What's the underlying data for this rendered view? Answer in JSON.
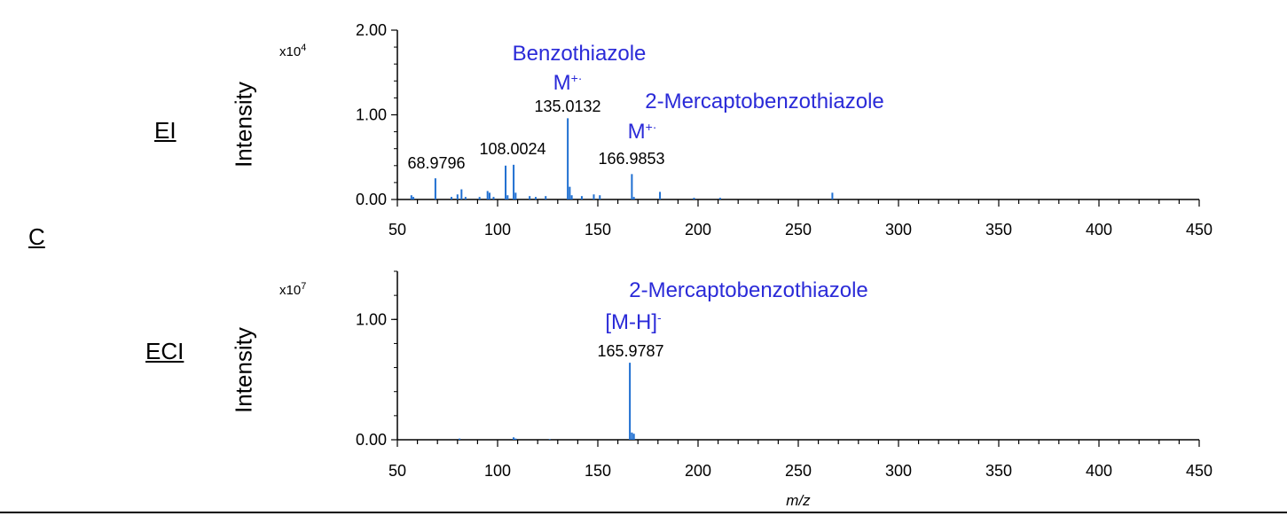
{
  "panel_label": "C",
  "panels": [
    {
      "mode": "EI",
      "ylabel": "Intensity",
      "multiplier_base": "x10",
      "multiplier_exp": "4"
    },
    {
      "mode": "ECI",
      "ylabel": "Intensity",
      "multiplier_base": "x10",
      "multiplier_exp": "7"
    }
  ],
  "xlabel": "m/z",
  "colors": {
    "peak": "#1f6fd1",
    "annotation": "#2a2ad8",
    "axis": "#000000"
  },
  "chart_data": [
    {
      "type": "bar",
      "title": "EI",
      "xlabel": "",
      "ylabel": "Intensity",
      "y_multiplier": "x10^4",
      "xlim": [
        50,
        450
      ],
      "ylim": [
        0,
        2.0
      ],
      "x_ticks": [
        50,
        100,
        150,
        200,
        250,
        300,
        350,
        400,
        450
      ],
      "y_ticks": [
        0.0,
        1.0,
        2.0
      ],
      "y_tick_labels": [
        "0.00",
        "1.00",
        "2.00"
      ],
      "peaks": [
        {
          "mz": 57.0,
          "intensity": 0.05
        },
        {
          "mz": 58.0,
          "intensity": 0.03
        },
        {
          "mz": 68.9796,
          "intensity": 0.25,
          "label": "68.9796"
        },
        {
          "mz": 77.0,
          "intensity": 0.03
        },
        {
          "mz": 80.0,
          "intensity": 0.06
        },
        {
          "mz": 82.0,
          "intensity": 0.12
        },
        {
          "mz": 84.0,
          "intensity": 0.03
        },
        {
          "mz": 91.0,
          "intensity": 0.03
        },
        {
          "mz": 95.0,
          "intensity": 0.1
        },
        {
          "mz": 96.0,
          "intensity": 0.08
        },
        {
          "mz": 98.0,
          "intensity": 0.03
        },
        {
          "mz": 104.0,
          "intensity": 0.4
        },
        {
          "mz": 105.0,
          "intensity": 0.05
        },
        {
          "mz": 108.0024,
          "intensity": 0.41,
          "label": "108.0024"
        },
        {
          "mz": 109.0,
          "intensity": 0.08
        },
        {
          "mz": 116.0,
          "intensity": 0.04
        },
        {
          "mz": 119.0,
          "intensity": 0.03
        },
        {
          "mz": 124.0,
          "intensity": 0.04
        },
        {
          "mz": 135.0132,
          "intensity": 0.96,
          "label": "135.0132"
        },
        {
          "mz": 136.0,
          "intensity": 0.15
        },
        {
          "mz": 137.0,
          "intensity": 0.05
        },
        {
          "mz": 142.0,
          "intensity": 0.04
        },
        {
          "mz": 148.0,
          "intensity": 0.06
        },
        {
          "mz": 151.0,
          "intensity": 0.05
        },
        {
          "mz": 166.9853,
          "intensity": 0.3,
          "label": "166.9853"
        },
        {
          "mz": 168.0,
          "intensity": 0.03
        },
        {
          "mz": 181.0,
          "intensity": 0.09
        },
        {
          "mz": 198.0,
          "intensity": 0.02
        },
        {
          "mz": 211.0,
          "intensity": 0.02
        },
        {
          "mz": 267.0,
          "intensity": 0.08
        }
      ],
      "annotations": [
        {
          "text": "Benzothiazole",
          "sup": ""
        },
        {
          "text": "M",
          "sup": "+·"
        },
        {
          "text": "2-Mercaptobenzothiazole",
          "sup": ""
        },
        {
          "text": "M",
          "sup": "+·"
        }
      ]
    },
    {
      "type": "bar",
      "title": "ECI",
      "xlabel": "m/z",
      "ylabel": "Intensity",
      "y_multiplier": "x10^7",
      "xlim": [
        50,
        450
      ],
      "ylim": [
        0,
        1.4
      ],
      "x_ticks": [
        50,
        100,
        150,
        200,
        250,
        300,
        350,
        400,
        450
      ],
      "y_ticks": [
        0.0,
        1.0
      ],
      "y_tick_labels": [
        "0.00",
        "1.00"
      ],
      "peaks": [
        {
          "mz": 165.9787,
          "intensity": 0.64,
          "label": "165.9787"
        },
        {
          "mz": 167.0,
          "intensity": 0.06
        },
        {
          "mz": 168.0,
          "intensity": 0.05
        },
        {
          "mz": 81.0,
          "intensity": 0.01
        },
        {
          "mz": 108.0,
          "intensity": 0.02
        },
        {
          "mz": 109.0,
          "intensity": 0.01
        },
        {
          "mz": 126.0,
          "intensity": 0.005
        }
      ],
      "annotations": [
        {
          "text": "2-Mercaptobenzothiazole",
          "sup": ""
        },
        {
          "text": "[M-H]",
          "sup": "-"
        }
      ]
    }
  ]
}
